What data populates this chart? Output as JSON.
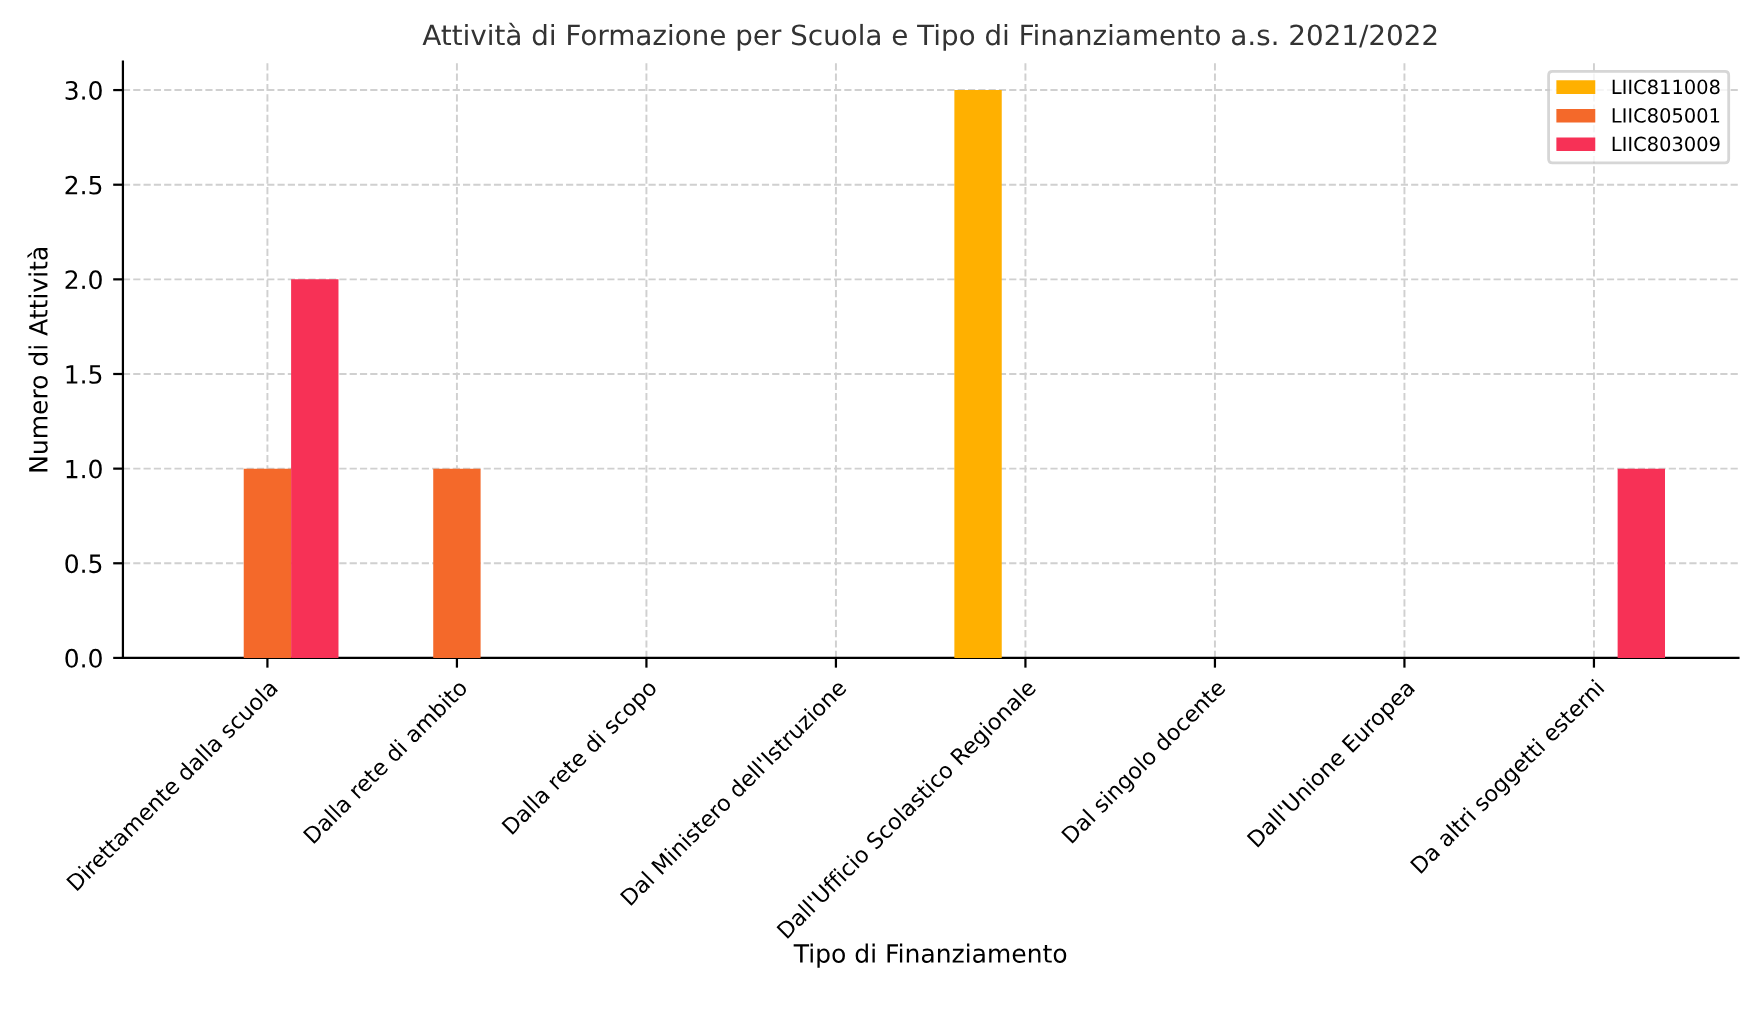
{
  "chart_data": {
    "type": "bar",
    "title": "Attività di Formazione per Scuola e Tipo di Finanziamento a.s. 2021/2022",
    "xlabel": "Tipo di Finanziamento",
    "ylabel": "Numero di Attività",
    "categories": [
      "Direttamente dalla scuola",
      "Dalla rete di ambito",
      "Dalla rete di scopo",
      "Dal Ministero dell'Istruzione",
      "Dall'Ufficio Scolastico Regionale",
      "Dal singolo docente",
      "Dall'Unione Europea",
      "Da altri soggetti esterni"
    ],
    "series": [
      {
        "name": "LIIC811008",
        "color": "#ffb000",
        "values": [
          0,
          0,
          0,
          0,
          3,
          0,
          0,
          0
        ]
      },
      {
        "name": "LIIC805001",
        "color": "#f4692a",
        "values": [
          1,
          1,
          0,
          0,
          0,
          0,
          0,
          0
        ]
      },
      {
        "name": "LIIC803009",
        "color": "#f73156",
        "values": [
          2,
          0,
          0,
          0,
          0,
          0,
          0,
          1
        ]
      }
    ],
    "ylim": [
      0,
      3.15
    ],
    "yticks": [
      {
        "value": 0,
        "label": "0.0"
      },
      {
        "value": 0.5,
        "label": "0.5"
      },
      {
        "value": 1,
        "label": "1.0"
      },
      {
        "value": 1.5,
        "label": "1.5"
      },
      {
        "value": 2,
        "label": "2.0"
      },
      {
        "value": 2.5,
        "label": "2.5"
      },
      {
        "value": 3,
        "label": "3.0"
      }
    ],
    "grid": true,
    "legend": "top right"
  }
}
